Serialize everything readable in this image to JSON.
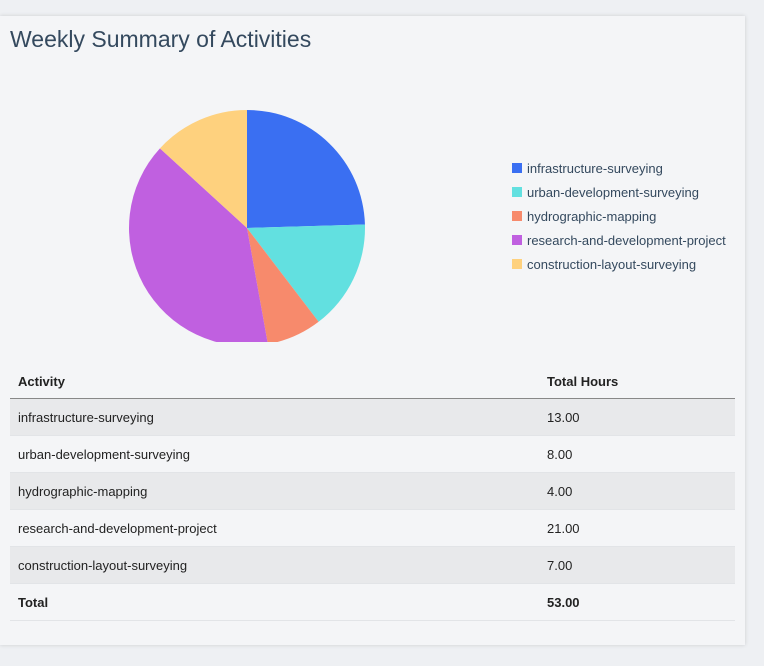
{
  "chart_data": {
    "type": "pie",
    "title": "Weekly Summary of Activities",
    "categories": [
      "infrastructure-surveying",
      "urban-development-surveying",
      "hydrographic-mapping",
      "research-and-development-project",
      "construction-layout-surveying"
    ],
    "values": [
      13,
      8,
      4,
      21,
      7
    ],
    "colors": [
      "#3a6ff2",
      "#62e0e0",
      "#f78a6c",
      "#c060e0",
      "#fed17e"
    ],
    "legend": "right"
  },
  "table": {
    "headers": [
      "Activity",
      "Total Hours"
    ],
    "rows": [
      [
        "infrastructure-surveying",
        "13.00"
      ],
      [
        "urban-development-surveying",
        "8.00"
      ],
      [
        "hydrographic-mapping",
        "4.00"
      ],
      [
        "research-and-development-project",
        "21.00"
      ],
      [
        "construction-layout-surveying",
        "7.00"
      ]
    ],
    "total": [
      "Total",
      "53.00"
    ]
  }
}
